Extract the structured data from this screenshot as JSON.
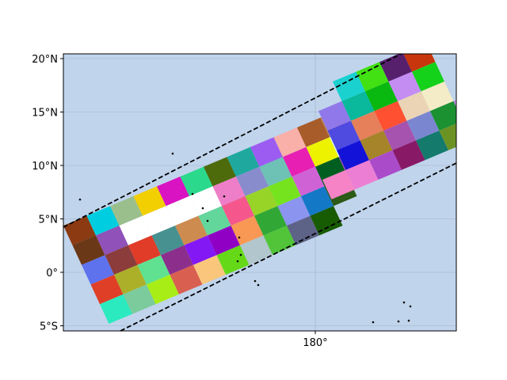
{
  "map": {
    "ocean_color": "#c0d4ec",
    "grid_color": "#9fb3c8",
    "lat_labels": [
      "20°N",
      "15°N",
      "10°N",
      "5°N",
      "0°",
      "5°S"
    ],
    "lon_labels": [
      "180°"
    ],
    "lat_values": [
      20,
      15,
      10,
      5,
      0,
      -5
    ],
    "lon_values": [
      180
    ]
  },
  "swath": {
    "outline_color": "#000000",
    "outline_style": "dashed",
    "segment_count": 2,
    "cell_colors_left": [
      "#8b3a12",
      "#00cde0",
      "#9bbf8c",
      "#f2cf00",
      "#d913c1",
      "#2ad98c",
      "#4d6b0b",
      "#1fa89e",
      "#9c5cf2",
      "#f8b0a8",
      "#a85c2a",
      "#b88858",
      "#80e4ee",
      "#6b3817",
      "#9051b8",
      "#ffffff",
      "#ffffff",
      "#ffffff",
      "#ffffff",
      "#ee7ec8",
      "#888ccd",
      "#6ec1b5",
      "#e81fb3",
      "#ecf200",
      "#dcf8f0",
      "#5f72ee",
      "#8c3c3a",
      "#e03c28",
      "#479190",
      "#cd8b4f",
      "#63d69c",
      "#f5578d",
      "#98d327",
      "#76e31f",
      "#cf63d6",
      "#005f20",
      "#9c48b4",
      "#e03f27",
      "#acb029",
      "#5fe191",
      "#8c2f8c",
      "#8418f4",
      "#9000c4",
      "#f99854",
      "#31a835",
      "#8b94ef",
      "#1378c6",
      "#2c5a17",
      "#2beabf",
      "#7ccb9c",
      "#a8ee16",
      "#d96051",
      "#f9c67c",
      "#65d918",
      "#b2c6cd",
      "#52c43a",
      "#5d6287",
      "#175b02"
    ],
    "cell_colors_right": [
      "#1ad1d0",
      "#41e114",
      "#57206d",
      "#c8360d",
      "#9178ea",
      "#0ab89b",
      "#09b910",
      "#c38df2",
      "#14d21a",
      "#4f4ae0",
      "#e6805a",
      "#ff5132",
      "#ebd4b6",
      "#f4ecc6",
      "#1212d8",
      "#a6842a",
      "#a653b0",
      "#7b86d0",
      "#1b9132",
      "#cd8af5",
      "#f583c5",
      "#ec7fd4",
      "#aa4cca",
      "#881966",
      "#137a6c",
      "#6b9324",
      "#f0a9d2"
    ]
  }
}
